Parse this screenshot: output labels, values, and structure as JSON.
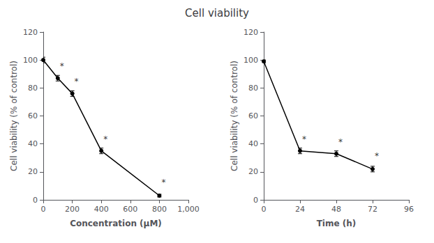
{
  "chart_data": [
    {
      "type": "line",
      "title": "Cell viability",
      "x": [
        0,
        100,
        200,
        400,
        800
      ],
      "values": [
        100,
        87,
        76,
        35,
        3
      ],
      "yerr": [
        2,
        2,
        2,
        2,
        1
      ],
      "xlabel": "Concentration (μM)",
      "ylabel": "Cell viability (% of control)",
      "xlim": [
        0,
        1000
      ],
      "ylim": [
        0,
        120
      ],
      "xticks": [
        0,
        200,
        400,
        600,
        800,
        1000
      ],
      "yticks": [
        0,
        20,
        40,
        60,
        80,
        100,
        120
      ],
      "annotations": [
        {
          "text": "*",
          "x": 100,
          "y": 91
        },
        {
          "text": "*",
          "x": 200,
          "y": 80
        },
        {
          "text": "*",
          "x": 400,
          "y": 39
        },
        {
          "text": "*",
          "x": 800,
          "y": 8
        }
      ],
      "color": "#000000",
      "marker": "circle",
      "grid": false
    },
    {
      "type": "line",
      "x": [
        0,
        24,
        48,
        72
      ],
      "values": [
        99,
        35,
        33,
        22
      ],
      "yerr": [
        1,
        2,
        2,
        2
      ],
      "xlabel": "Time (h)",
      "ylabel": "Cell viability (% of control)",
      "xlim": [
        0,
        96
      ],
      "ylim": [
        0,
        120
      ],
      "xticks": [
        0,
        24,
        48,
        72,
        96
      ],
      "yticks": [
        0,
        20,
        40,
        60,
        80,
        100,
        120
      ],
      "annotations": [
        {
          "text": "*",
          "x": 24,
          "y": 39
        },
        {
          "text": "*",
          "x": 48,
          "y": 37
        },
        {
          "text": "*",
          "x": 72,
          "y": 27
        }
      ],
      "color": "#000000",
      "marker": "circle",
      "grid": false
    }
  ]
}
